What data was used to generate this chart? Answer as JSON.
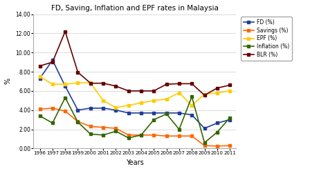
{
  "title": "FD, Saving, Inflation and EPF rates in Malaysia",
  "xlabel": "Years",
  "ylabel": "%",
  "years": [
    1996,
    1997,
    1998,
    1999,
    2000,
    2001,
    2002,
    2003,
    2004,
    2005,
    2006,
    2007,
    2008,
    2009,
    2010,
    2011
  ],
  "fd": [
    7.3,
    9.2,
    6.5,
    4.0,
    4.2,
    4.2,
    4.0,
    3.7,
    3.7,
    3.7,
    3.7,
    3.7,
    3.5,
    2.1,
    2.65,
    3.0
  ],
  "savings": [
    4.1,
    4.2,
    3.9,
    2.8,
    2.3,
    2.2,
    2.1,
    1.4,
    1.4,
    1.4,
    1.3,
    1.3,
    1.3,
    0.3,
    0.25,
    0.3
  ],
  "epf": [
    7.5,
    6.7,
    6.7,
    6.84,
    6.84,
    5.0,
    4.25,
    4.5,
    4.75,
    5.0,
    5.15,
    5.8,
    4.5,
    5.65,
    5.8,
    6.0
  ],
  "inflation": [
    3.4,
    2.65,
    5.3,
    2.75,
    1.5,
    1.4,
    1.8,
    1.1,
    1.4,
    3.0,
    3.6,
    2.0,
    5.4,
    0.6,
    1.7,
    3.2
  ],
  "blr": [
    8.6,
    9.0,
    12.2,
    7.95,
    6.8,
    6.8,
    6.5,
    6.0,
    6.0,
    6.0,
    6.7,
    6.75,
    6.75,
    5.55,
    6.3,
    6.6
  ],
  "colors": {
    "fd": "#1F3D99",
    "savings": "#FF6600",
    "epf": "#FFCC00",
    "inflation": "#336600",
    "blr": "#660000"
  },
  "ylim": [
    0.0,
    14.0
  ],
  "yticks": [
    0.0,
    2.0,
    4.0,
    6.0,
    8.0,
    10.0,
    12.0,
    14.0
  ],
  "bg_color": "#ffffff",
  "legend_labels": [
    "FD (%)",
    "Savings (%)",
    "EPF (%)",
    "Inflation (%)",
    "BLR (%)"
  ]
}
